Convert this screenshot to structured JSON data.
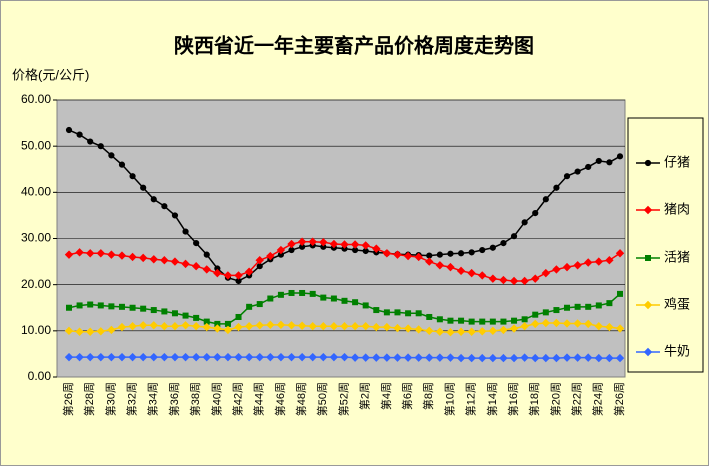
{
  "chart_data": {
    "type": "line",
    "title": "陕西省近一年主要畜产品价格周度走势图",
    "y_label": "价格(元/公斤)",
    "categories": [
      "第26周",
      null,
      "第28周",
      null,
      "第30周",
      null,
      "第32周",
      null,
      "第34周",
      null,
      "第36周",
      null,
      "第38周",
      null,
      "第40周",
      null,
      "第42周",
      null,
      "第44周",
      null,
      "第46周",
      null,
      "第48周",
      null,
      "第50周",
      null,
      "第52周",
      null,
      "第2周",
      null,
      "第4周",
      null,
      "第6周",
      null,
      "第8周",
      null,
      "第10周",
      null,
      "第12周",
      null,
      "第14周",
      null,
      "第16周",
      null,
      "第18周",
      null,
      "第20周",
      null,
      "第22周",
      null,
      "第24周",
      null,
      "第26周"
    ],
    "ylim": [
      0,
      60
    ],
    "yticks": [
      {
        "value": 0,
        "label": "0.00"
      },
      {
        "value": 10,
        "label": "10.00"
      },
      {
        "value": 20,
        "label": "20.00"
      },
      {
        "value": 30,
        "label": "30.00"
      },
      {
        "value": 40,
        "label": "40.00"
      },
      {
        "value": 50,
        "label": "50.00"
      },
      {
        "value": 60,
        "label": "60.00"
      }
    ],
    "grid": true,
    "legend": "right",
    "series": [
      {
        "name": "仔猪",
        "color": "#000000",
        "marker": "circle",
        "values": [
          53.5,
          52.5,
          51,
          50,
          48,
          46,
          43.5,
          41,
          38.5,
          37,
          35,
          31.5,
          29,
          26.5,
          23.5,
          21.5,
          20.8,
          22,
          24,
          25.5,
          26.5,
          27.5,
          28.2,
          28.5,
          28.2,
          28,
          27.8,
          27.5,
          27.3,
          27,
          26.8,
          26.6,
          26.5,
          26.4,
          26.3,
          26.5,
          26.7,
          26.8,
          27,
          27.5,
          28,
          29,
          30.5,
          33.5,
          35.5,
          38.5,
          41,
          43.5,
          44.5,
          45.5,
          46.8,
          46.5,
          47.8
        ]
      },
      {
        "name": "猪肉",
        "color": "#ff0000",
        "marker": "diamond",
        "values": [
          26.5,
          27,
          26.8,
          26.8,
          26.5,
          26.3,
          26,
          25.8,
          25.5,
          25.3,
          25,
          24.5,
          24,
          23.3,
          22.5,
          22,
          22,
          22.8,
          25.3,
          26.2,
          27.5,
          28.8,
          29.3,
          29.3,
          29.2,
          28.8,
          28.7,
          28.7,
          28.5,
          27.8,
          26.8,
          26.5,
          26.2,
          26,
          25,
          24.2,
          23.8,
          23,
          22.5,
          22,
          21.3,
          21,
          20.8,
          20.8,
          21.3,
          22.5,
          23.3,
          23.8,
          24.2,
          24.8,
          25,
          25.3,
          26.8
        ]
      },
      {
        "name": "活猪",
        "color": "#008000",
        "marker": "square",
        "values": [
          15,
          15.5,
          15.7,
          15.5,
          15.3,
          15.2,
          15,
          14.8,
          14.5,
          14.2,
          13.8,
          13.3,
          12.8,
          12,
          11.5,
          11.5,
          13,
          15.2,
          15.8,
          17,
          17.8,
          18.2,
          18.2,
          18,
          17.2,
          17,
          16.5,
          16.2,
          15.5,
          14.5,
          14,
          14,
          13.8,
          13.8,
          13,
          12.5,
          12.2,
          12.2,
          12,
          12,
          12,
          12,
          12.2,
          12.5,
          13.5,
          14,
          14.5,
          15,
          15.2,
          15.2,
          15.5,
          16,
          18
        ]
      },
      {
        "name": "鸡蛋",
        "color": "#ffcc00",
        "marker": "diamond",
        "values": [
          10,
          9.8,
          9.8,
          9.9,
          10.2,
          10.8,
          11,
          11.2,
          11.2,
          11,
          11,
          11.2,
          11,
          10.8,
          10.5,
          10.2,
          10.8,
          11,
          11.2,
          11.3,
          11.3,
          11.2,
          11.1,
          11,
          11,
          11,
          11,
          11,
          11,
          10.8,
          10.8,
          10.6,
          10.5,
          10.3,
          10,
          9.8,
          9.7,
          9.8,
          9.8,
          9.9,
          10,
          10.2,
          10.5,
          11,
          11.5,
          11.7,
          11.7,
          11.6,
          11.6,
          11.5,
          11,
          10.8,
          10.5
        ]
      },
      {
        "name": "牛奶",
        "color": "#3366ff",
        "marker": "diamond",
        "values": [
          4.3,
          4.3,
          4.3,
          4.3,
          4.3,
          4.3,
          4.3,
          4.3,
          4.3,
          4.3,
          4.3,
          4.3,
          4.3,
          4.3,
          4.3,
          4.3,
          4.3,
          4.3,
          4.3,
          4.3,
          4.3,
          4.3,
          4.3,
          4.3,
          4.3,
          4.3,
          4.3,
          4.2,
          4.2,
          4.2,
          4.2,
          4.2,
          4.2,
          4.2,
          4.2,
          4.2,
          4.2,
          4.1,
          4.1,
          4.1,
          4.1,
          4.1,
          4.1,
          4.2,
          4.1,
          4.1,
          4.1,
          4.2,
          4.2,
          4.2,
          4.1,
          4.1,
          4.1
        ]
      }
    ]
  }
}
